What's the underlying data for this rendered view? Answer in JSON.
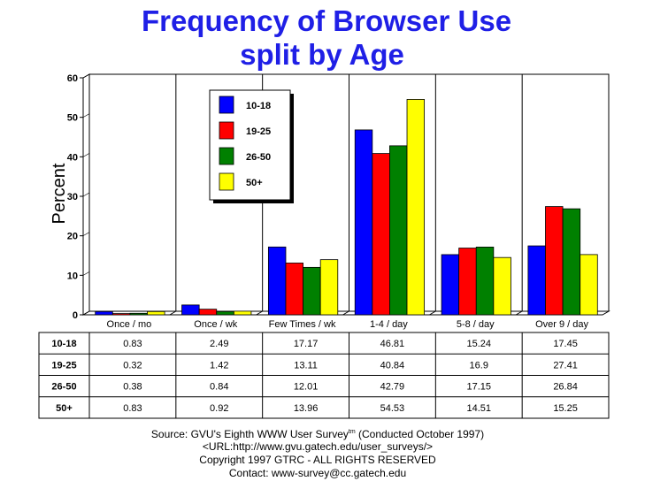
{
  "chart_data": {
    "type": "bar",
    "title": [
      "Frequency of Browser Use",
      "split by Age"
    ],
    "ylabel": "Percent",
    "xlabel": "",
    "ylim": [
      0,
      60
    ],
    "yticks": [
      "0",
      "10",
      "20",
      "30",
      "40",
      "50",
      "60"
    ],
    "categories": [
      "Once / mo",
      "Once / wk",
      "Few Times / wk",
      "1-4 / day",
      "5-8 / day",
      "Over 9 / day"
    ],
    "series": [
      {
        "name": "10-18",
        "color": "#0000ff",
        "values": [
          0.83,
          2.49,
          17.17,
          46.81,
          15.24,
          17.45
        ]
      },
      {
        "name": "19-25",
        "color": "#ff0000",
        "values": [
          0.32,
          1.42,
          13.11,
          40.84,
          16.9,
          27.41
        ]
      },
      {
        "name": "26-50",
        "color": "#008000",
        "values": [
          0.38,
          0.84,
          12.01,
          42.79,
          17.15,
          26.84
        ]
      },
      {
        "name": "50+",
        "color": "#ffff00",
        "values": [
          0.83,
          0.92,
          13.96,
          54.53,
          14.51,
          15.25
        ]
      }
    ],
    "table": {
      "rows": [
        {
          "label": "10-18",
          "cells": [
            "0.83",
            "2.49",
            "17.17",
            "46.81",
            "15.24",
            "17.45"
          ]
        },
        {
          "label": "19-25",
          "cells": [
            "0.32",
            "1.42",
            "13.11",
            "40.84",
            "16.9",
            "27.41"
          ]
        },
        {
          "label": "26-50",
          "cells": [
            "0.38",
            "0.84",
            "12.01",
            "42.79",
            "17.15",
            "26.84"
          ]
        },
        {
          "label": "50+",
          "cells": [
            "0.83",
            "0.92",
            "13.96",
            "54.53",
            "14.51",
            "15.25"
          ]
        }
      ]
    },
    "legend_position": "top-left inside plot",
    "grid": "vertical category separators"
  },
  "footer": {
    "source_pre": "Source: GVU's Eighth WWW User Survey",
    "source_tm": "tm",
    "source_post": " (Conducted October 1997)",
    "url": "<URL:http://www.gvu.gatech.edu/user_surveys/>",
    "copyright": "Copyright 1997 GTRC - ALL RIGHTS RESERVED",
    "contact": "Contact: www-survey@cc.gatech.edu"
  }
}
